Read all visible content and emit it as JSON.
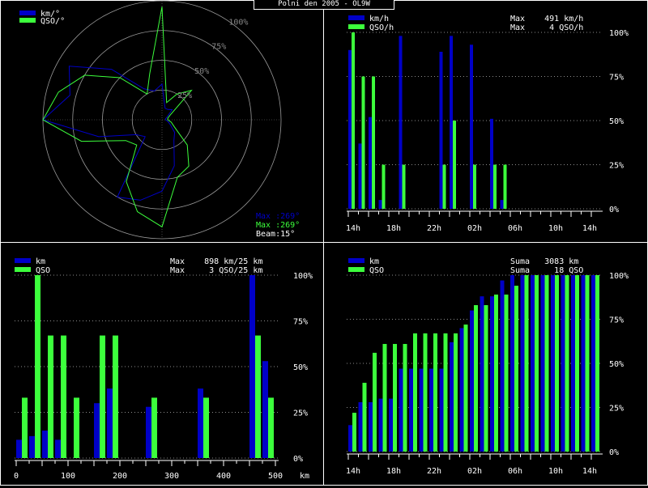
{
  "title": "Polni den 2005 - OL9W",
  "colors": {
    "blue": "#0000c8",
    "green": "#3cff3c",
    "grid": "#ffffff"
  },
  "charts": {
    "polar": {
      "legend": [
        "km/°",
        "QSO/°"
      ],
      "ring_labels": [
        "25%",
        "50%",
        "75%",
        "100%"
      ],
      "max_km_label": "Max :269°",
      "max_qso_label": "Max :269°",
      "beam_label": "Beam:15°"
    },
    "time": {
      "legend": [
        "km/h",
        "QSO/h"
      ],
      "stats": [
        "Max    491 km/h",
        "Max     4 QSO/h"
      ],
      "y_labels": [
        "100%",
        "75%",
        "50%",
        "25%",
        "0%"
      ],
      "x_labels": [
        "14h",
        "18h",
        "22h",
        "02h",
        "06h",
        "10h",
        "14h"
      ]
    },
    "dist": {
      "legend": [
        "km",
        "QSO"
      ],
      "stats": [
        "Max    898 km/25 km",
        "Max     3 QSO/25 km"
      ],
      "y_labels": [
        "100%",
        "75%",
        "50%",
        "25%",
        "0%"
      ],
      "x_labels": [
        "0",
        "100",
        "200",
        "300",
        "400",
        "500"
      ],
      "x_unit": "km"
    },
    "cumul": {
      "legend": [
        "km",
        "QSO"
      ],
      "stats": [
        "Suma   3083 km",
        "Suma     18 QSO"
      ],
      "y_labels": [
        "100%",
        "75%",
        "50%",
        "25%",
        "0%"
      ],
      "x_labels": [
        "14h",
        "18h",
        "22h",
        "02h",
        "06h",
        "10h",
        "14h"
      ]
    }
  },
  "chart_data": [
    {
      "type": "polar",
      "title": "",
      "angles_deg": [
        0,
        15,
        30,
        45,
        60,
        75,
        90,
        105,
        120,
        135,
        150,
        165,
        180,
        195,
        210,
        225,
        240,
        255,
        270,
        285,
        300,
        315,
        330,
        345
      ],
      "series": [
        {
          "name": "km/°",
          "values": [
            30,
            10,
            10,
            12,
            5,
            3,
            3,
            5,
            8,
            15,
            20,
            40,
            60,
            70,
            75,
            20,
            25,
            55,
            100,
            80,
            90,
            60,
            30,
            25
          ]
        },
        {
          "name": "QSO/°",
          "values": [
            95,
            15,
            25,
            35,
            8,
            5,
            5,
            8,
            12,
            30,
            45,
            50,
            90,
            80,
            60,
            30,
            35,
            70,
            100,
            90,
            75,
            50,
            25,
            40
          ]
        }
      ]
    },
    {
      "type": "bar",
      "title": "",
      "x": [
        0,
        1,
        2,
        3,
        4,
        5,
        6,
        7,
        8,
        9,
        10,
        11,
        12,
        13,
        14,
        15,
        16,
        17,
        18,
        19,
        20,
        21,
        22,
        23,
        24
      ],
      "series": [
        {
          "name": "km/h",
          "values": [
            90,
            37,
            52,
            5,
            0,
            98,
            0,
            0,
            0,
            89,
            98,
            0,
            93,
            0,
            51,
            5,
            0,
            0,
            0,
            0,
            0,
            0,
            0,
            0,
            0
          ]
        },
        {
          "name": "QSO/h",
          "values": [
            100,
            75,
            75,
            25,
            0,
            25,
            0,
            0,
            0,
            25,
            50,
            0,
            25,
            0,
            25,
            25,
            0,
            0,
            0,
            0,
            0,
            0,
            0,
            0,
            0
          ]
        }
      ],
      "ylim": [
        0,
        100
      ]
    },
    {
      "type": "bar",
      "title": "",
      "x": [
        0,
        25,
        50,
        75,
        100,
        125,
        150,
        175,
        200,
        225,
        250,
        275,
        300,
        325,
        350,
        375,
        400,
        425,
        450,
        475
      ],
      "series": [
        {
          "name": "km",
          "values": [
            10,
            12,
            15,
            10,
            0,
            0,
            30,
            38,
            0,
            0,
            28,
            0,
            0,
            0,
            38,
            0,
            0,
            0,
            100,
            53
          ]
        },
        {
          "name": "QSO",
          "values": [
            33,
            100,
            67,
            67,
            33,
            0,
            67,
            67,
            0,
            0,
            33,
            0,
            0,
            0,
            33,
            0,
            0,
            0,
            67,
            33
          ]
        }
      ],
      "xlabel": "km",
      "ylim": [
        0,
        100
      ]
    },
    {
      "type": "bar",
      "title": "",
      "x": [
        0,
        1,
        2,
        3,
        4,
        5,
        6,
        7,
        8,
        9,
        10,
        11,
        12,
        13,
        14,
        15,
        16,
        17,
        18,
        19,
        20,
        21,
        22,
        23,
        24
      ],
      "series": [
        {
          "name": "km",
          "values": [
            15,
            28,
            28,
            30,
            30,
            47,
            47,
            47,
            47,
            47,
            62,
            70,
            80,
            88,
            88,
            97,
            100,
            100,
            100,
            100,
            100,
            100,
            100,
            100,
            100
          ]
        },
        {
          "name": "QSO",
          "values": [
            22,
            39,
            56,
            61,
            61,
            61,
            67,
            67,
            67,
            67,
            67,
            72,
            83,
            83,
            89,
            89,
            94,
            100,
            100,
            100,
            100,
            100,
            100,
            100,
            100
          ]
        }
      ],
      "ylim": [
        0,
        100
      ]
    }
  ]
}
